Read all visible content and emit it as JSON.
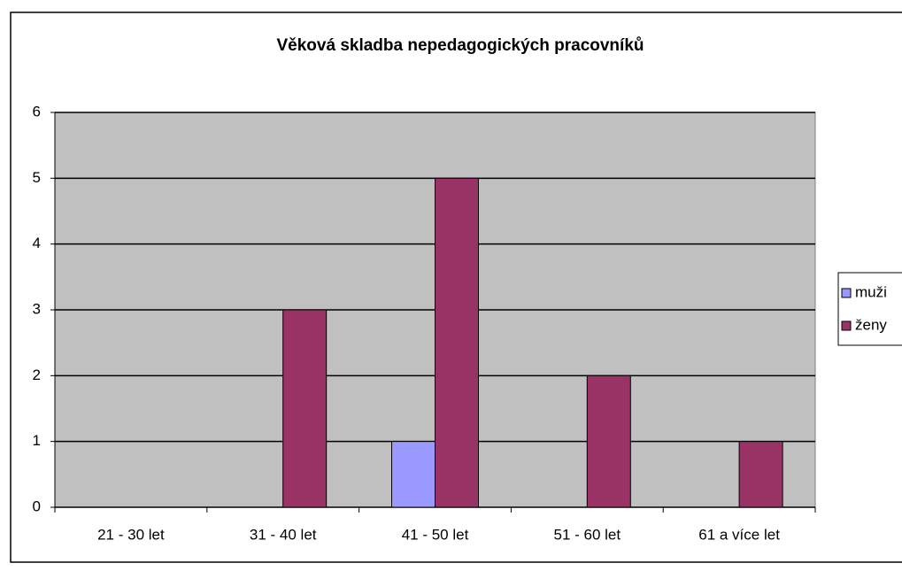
{
  "chart_data": {
    "type": "bar",
    "title": "Věková skladba nepedagogických pracovníků",
    "categories": [
      "21 - 30 let",
      "31 - 40 let",
      "41 - 50 let",
      "51 - 60 let",
      "61 a více let"
    ],
    "series": [
      {
        "name": "muži",
        "color": "#9999ff",
        "values": [
          0,
          0,
          1,
          0,
          0
        ]
      },
      {
        "name": "ženy",
        "color": "#993366",
        "values": [
          0,
          3,
          5,
          2,
          1
        ]
      }
    ],
    "ylim": [
      0,
      6
    ],
    "yticks": [
      0,
      1,
      2,
      3,
      4,
      5,
      6
    ],
    "grid": true,
    "legend": "right"
  }
}
